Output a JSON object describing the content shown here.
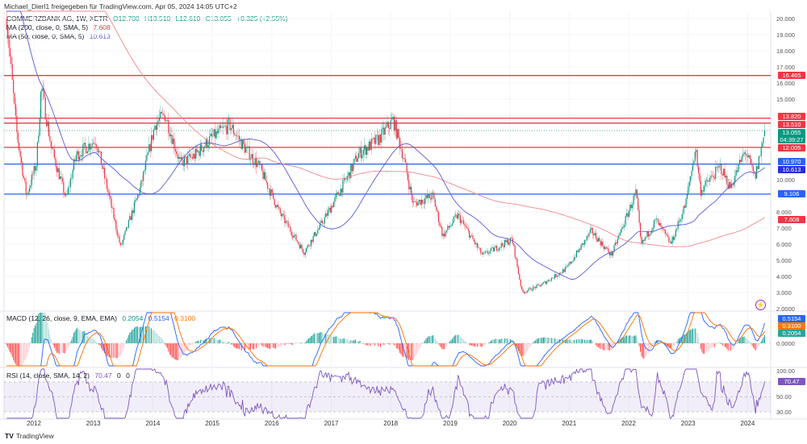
{
  "header": {
    "shared_by": "Michael_Dierl1 freigegeben für TradingView.com, Apr 05, 2024 14:05 UTC+2"
  },
  "symbol": {
    "name": "COMMERZBANK AG, 1W, XETR",
    "open": "O12.700",
    "high": "H13.510",
    "low": "L12.610",
    "close": "C13.055",
    "change": "+0.325 (+2.55%)"
  },
  "indicators": {
    "ma200": {
      "label": "MA (200, close, 0, SMA, 5)",
      "value": "7.608",
      "color": "#f23645"
    },
    "ma50": {
      "label": "MA (50, close, 0, SMA, 5)",
      "value": "10.613",
      "color": "#5b5bd6"
    },
    "macd": {
      "label": "MACD (12, 26, close, 9, EMA, EMA)",
      "hist": "0.2054",
      "macd": "0.5154",
      "signal": "0.3100"
    },
    "rsi": {
      "label": "RSI (14, close, SMA, 14, 2)",
      "value": "70.47",
      "extra1": "0",
      "extra2": "0"
    }
  },
  "price_axis": [
    "20.000",
    "19.000",
    "18.000",
    "17.000",
    "16.000",
    "15.000",
    "10.000",
    "8.000",
    "7.000",
    "6.000",
    "5.000",
    "4.000",
    "3.000",
    "2.0000"
  ],
  "macd_axis": [
    "0.0000"
  ],
  "rsi_axis": [
    "100.00",
    "50.00",
    "30.00"
  ],
  "horizontal_levels": [
    {
      "value": "16.465",
      "color": "#f23645"
    },
    {
      "value": "13.820",
      "color": "#f23645"
    },
    {
      "value": "13.510",
      "color": "#f23645"
    },
    {
      "value": "12.005",
      "color": "#f23645"
    },
    {
      "value": "10.970",
      "color": "#2962ff"
    },
    {
      "value": "9.106",
      "color": "#2962ff"
    }
  ],
  "last_price": {
    "value": "13.055",
    "countdown": "04:39:27",
    "color": "#089981"
  },
  "time_axis": [
    "2012",
    "2013",
    "2014",
    "2015",
    "2016",
    "2017",
    "2018",
    "2019",
    "2020",
    "2021",
    "2022",
    "2023",
    "2024"
  ],
  "footer": {
    "logo_text": "TradingView"
  },
  "chart_data": {
    "type": "candlestick",
    "interval": "1W",
    "price_scale": "linear",
    "ylim": [
      2,
      20.5
    ],
    "approx_close_path": [
      [
        "2011-07",
        20.0
      ],
      [
        "2011-08",
        16.5
      ],
      [
        "2011-09",
        13.0
      ],
      [
        "2011-11",
        9.0
      ],
      [
        "2012-01",
        11.0
      ],
      [
        "2012-02",
        15.8
      ],
      [
        "2012-04",
        12.0
      ],
      [
        "2012-07",
        8.8
      ],
      [
        "2012-09",
        11.5
      ],
      [
        "2013-01",
        12.5
      ],
      [
        "2013-04",
        8.5
      ],
      [
        "2013-06",
        5.8
      ],
      [
        "2013-10",
        9.5
      ],
      [
        "2014-01",
        13.5
      ],
      [
        "2014-03",
        14.0
      ],
      [
        "2014-06",
        11.0
      ],
      [
        "2014-09",
        11.5
      ],
      [
        "2014-12",
        12.5
      ],
      [
        "2015-04",
        13.4
      ],
      [
        "2015-07",
        12.0
      ],
      [
        "2015-10",
        10.8
      ],
      [
        "2016-02",
        8.0
      ],
      [
        "2016-07",
        5.5
      ],
      [
        "2016-11",
        7.5
      ],
      [
        "2017-04",
        10.3
      ],
      [
        "2017-06",
        11.6
      ],
      [
        "2017-10",
        12.5
      ],
      [
        "2018-01",
        13.7
      ],
      [
        "2018-03",
        11.5
      ],
      [
        "2018-05",
        8.5
      ],
      [
        "2018-09",
        9.0
      ],
      [
        "2018-11",
        6.5
      ],
      [
        "2019-02",
        7.8
      ],
      [
        "2019-07",
        5.3
      ],
      [
        "2020-01",
        6.3
      ],
      [
        "2020-03",
        3.0
      ],
      [
        "2020-07",
        3.5
      ],
      [
        "2020-12",
        4.5
      ],
      [
        "2021-05",
        6.8
      ],
      [
        "2021-09",
        5.3
      ],
      [
        "2022-02",
        9.2
      ],
      [
        "2022-03",
        5.9
      ],
      [
        "2022-06",
        7.5
      ],
      [
        "2022-09",
        6.0
      ],
      [
        "2022-12",
        8.5
      ],
      [
        "2023-02",
        12.0
      ],
      [
        "2023-03",
        9.3
      ],
      [
        "2023-07",
        10.8
      ],
      [
        "2023-09",
        9.5
      ],
      [
        "2023-12",
        11.8
      ],
      [
        "2024-02",
        10.1
      ],
      [
        "2024-04",
        13.055
      ]
    ],
    "up_color": "#089981",
    "down_color": "#f23645"
  }
}
